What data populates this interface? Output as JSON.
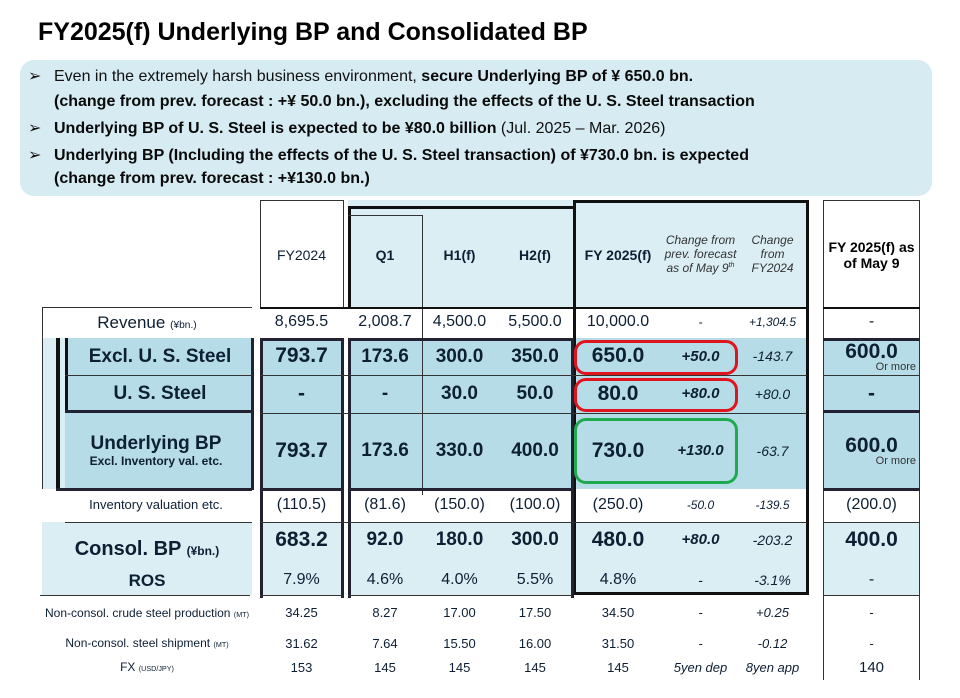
{
  "title": "FY2025(f) Underlying BP and Consolidated BP",
  "bullets": [
    {
      "pre": "Even in the extremely harsh business environment, ",
      "bold": "secure Underlying  BP of ¥ 650.0 bn."
    },
    {
      "pre": "",
      "bold": "(change from prev. forecast : +¥ 50.0 bn.), excluding the effects of the U. S. Steel transaction"
    },
    {
      "pre": "",
      "bold": "Underlying  BP of U. S. Steel is expected to be ¥80.0 billion",
      "post": " (Jul. 2025 – Mar. 2026)"
    },
    {
      "pre": "",
      "bold": "Underlying  BP (Including the effects of the U. S. Steel transaction)   of ¥730.0 bn. is expected"
    },
    {
      "pre": "",
      "bold": "(change from prev. forecast : +¥130.0 bn.)"
    }
  ],
  "headers": {
    "fy2024": "FY2024",
    "q1": "Q1",
    "h1": "H1(f)",
    "h2": "H2(f)",
    "fy2025": "FY 2025(f)",
    "chg_prev": "Change from prev. forecast as of May 9",
    "chg_prev_sup": "th",
    "chg_fy24": "Change from FY2024",
    "may9": "FY 2025(f) as of May 9"
  },
  "rows": [
    {
      "label": "Revenue",
      "unit": "(¥bn.)",
      "values": [
        "8,695.5",
        "2,008.7",
        "4,500.0",
        "5,500.0",
        "10,000.0",
        "-",
        "+1,304.5",
        "-"
      ]
    },
    {
      "label": "Excl. U. S. Steel",
      "values": [
        "793.7",
        "173.6",
        "300.0",
        "350.0",
        "650.0",
        "+50.0",
        "-143.7",
        "600.0"
      ],
      "note": "Or more"
    },
    {
      "label": "U. S. Steel",
      "values": [
        "-",
        "-",
        "30.0",
        "50.0",
        "80.0",
        "+80.0",
        "+80.0",
        "-"
      ]
    },
    {
      "label": "Underlying BP",
      "sublabel": "Excl. Inventory val. etc.",
      "values": [
        "793.7",
        "173.6",
        "330.0",
        "400.0",
        "730.0",
        "+130.0",
        "-63.7",
        "600.0"
      ],
      "note": "Or more"
    },
    {
      "label": "Inventory valuation etc.",
      "values": [
        "(110.5)",
        "(81.6)",
        "(150.0)",
        "(100.0)",
        "(250.0)",
        "-50.0",
        "-139.5",
        "(200.0)"
      ]
    },
    {
      "label": "Consol. BP",
      "unit": "(¥bn.)",
      "values": [
        "683.2",
        "92.0",
        "180.0",
        "300.0",
        "480.0",
        "+80.0",
        "-203.2",
        "400.0"
      ]
    },
    {
      "label": "ROS",
      "values": [
        "7.9%",
        "4.6%",
        "4.0%",
        "5.5%",
        "4.8%",
        "-",
        "-3.1%",
        "-"
      ]
    },
    {
      "label": "Non-consol. crude steel production",
      "unit": "(MT)",
      "values": [
        "34.25",
        "8.27",
        "17.00",
        "17.50",
        "34.50",
        "-",
        "+0.25",
        "-"
      ]
    },
    {
      "label": "Non-consol. steel shipment",
      "unit": "(MT)",
      "values": [
        "31.62",
        "7.64",
        "15.50",
        "16.00",
        "31.50",
        "-",
        "-0.12",
        "-"
      ]
    },
    {
      "label": "FX",
      "unit": "(USD/JPY)",
      "values": [
        "153",
        "145",
        "145",
        "145",
        "145",
        "5yen dep",
        "8yen app",
        "140"
      ]
    }
  ],
  "colors": {
    "dark_fill": "#b6dce7",
    "light_fill": "#daeef4",
    "red": "#e0141e",
    "green": "#1faa4f"
  }
}
